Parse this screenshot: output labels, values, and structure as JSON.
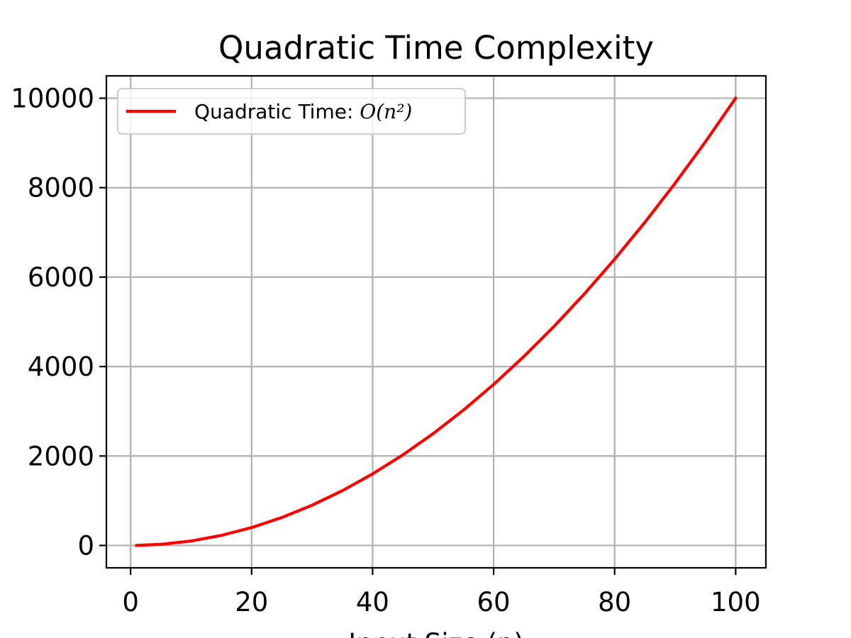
{
  "chart_data": {
    "type": "line",
    "title": "Quadratic Time Complexity",
    "xlabel": "Input Size (n)",
    "ylabel": "",
    "xlim": [
      -4,
      105
    ],
    "ylim": [
      -500,
      10500
    ],
    "xticks": [
      0,
      20,
      40,
      60,
      80,
      100
    ],
    "yticks": [
      0,
      2000,
      4000,
      6000,
      8000,
      10000
    ],
    "grid": true,
    "legend": {
      "placement": "upper-left",
      "entries": [
        {
          "prefix": "Quadratic Time: ",
          "math": "O(n²)",
          "color": "#ff0000"
        }
      ]
    },
    "series": [
      {
        "name": "Quadratic Time: O(n²)",
        "color": "#ff0000",
        "x": [
          1,
          5,
          10,
          15,
          20,
          25,
          30,
          35,
          40,
          45,
          50,
          55,
          60,
          65,
          70,
          75,
          80,
          85,
          90,
          95,
          100
        ],
        "y": [
          1,
          25,
          100,
          225,
          400,
          625,
          900,
          1225,
          1600,
          2025,
          2500,
          3025,
          3600,
          4225,
          4900,
          5625,
          6400,
          7225,
          8100,
          9025,
          10000
        ]
      }
    ]
  }
}
